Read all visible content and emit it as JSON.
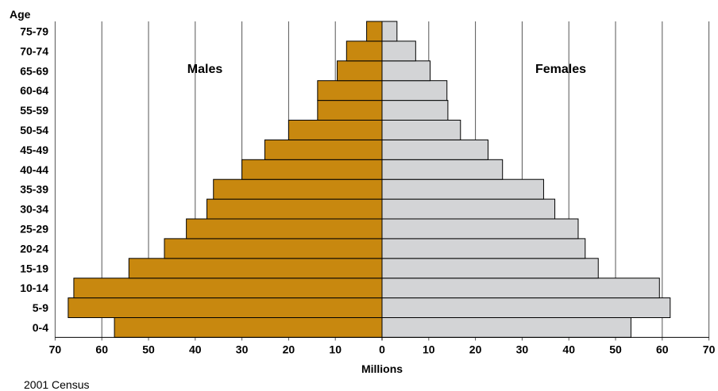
{
  "chart_data": {
    "type": "bar",
    "orientation": "horizontal",
    "subtype": "population-pyramid",
    "categories": [
      "0-4",
      "5-9",
      "10-14",
      "15-19",
      "20-24",
      "25-29",
      "30-34",
      "35-39",
      "40-44",
      "45-49",
      "50-54",
      "55-59",
      "60-64",
      "65-69",
      "70-74",
      "75-79"
    ],
    "series": [
      {
        "name": "Males",
        "side": "left",
        "color": "#c8880f",
        "values": [
          57.3,
          67.2,
          66.0,
          54.2,
          46.6,
          41.9,
          37.5,
          36.1,
          30.0,
          25.1,
          20.0,
          13.8,
          13.8,
          9.6,
          7.6,
          3.3
        ]
      },
      {
        "name": "Females",
        "side": "right",
        "color": "#d3d4d6",
        "values": [
          53.3,
          61.7,
          59.4,
          46.3,
          43.5,
          42.0,
          37.0,
          34.6,
          25.8,
          22.7,
          16.8,
          14.1,
          13.9,
          10.3,
          7.2,
          3.2
        ]
      }
    ],
    "xlabel": "Millions",
    "ylabel": "Age",
    "xlim": [
      -70,
      70
    ],
    "xticks": [
      70,
      60,
      50,
      40,
      30,
      20,
      10,
      0,
      10,
      20,
      30,
      40,
      50,
      60,
      70
    ],
    "grid": "vertical",
    "source_note": "2001 Census"
  }
}
